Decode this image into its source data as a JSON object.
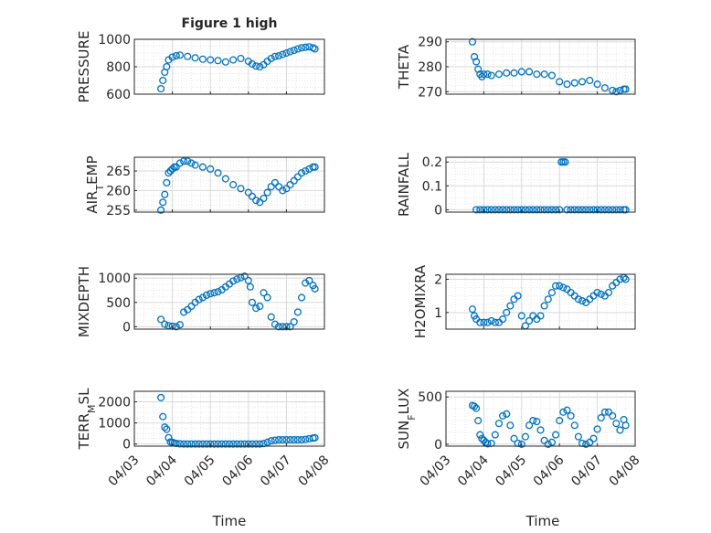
{
  "figure": {
    "title": "Figure 1 high",
    "xlabel": "Time",
    "marker_color": "#0072BD",
    "grid_color": "#d9d9d9",
    "axis_color": "#262626"
  },
  "chart_data": [
    {
      "type": "scatter",
      "ylabel": "PRESSURE",
      "title": "Figure 1 high",
      "ylim": [
        600,
        1000
      ],
      "yticks": [
        "600",
        "800",
        "1000"
      ],
      "ytick_values": [
        600,
        800,
        1000
      ],
      "xlim": [
        0,
        5
      ],
      "xticks": [],
      "grid": true,
      "x": [
        0.7,
        0.75,
        0.8,
        0.85,
        0.9,
        1.0,
        1.1,
        1.2,
        1.4,
        1.6,
        1.8,
        2.0,
        2.2,
        2.4,
        2.6,
        2.8,
        3.0,
        3.1,
        3.2,
        3.3,
        3.4,
        3.5,
        3.6,
        3.7,
        3.8,
        3.9,
        4.0,
        4.1,
        4.2,
        4.3,
        4.4,
        4.5,
        4.6,
        4.7,
        4.75
      ],
      "y": [
        640,
        700,
        760,
        800,
        850,
        870,
        880,
        885,
        875,
        865,
        855,
        850,
        845,
        835,
        850,
        860,
        840,
        820,
        805,
        800,
        815,
        840,
        860,
        875,
        880,
        890,
        900,
        910,
        920,
        930,
        938,
        942,
        945,
        938,
        930
      ]
    },
    {
      "type": "scatter",
      "ylabel": "THETA",
      "ylim": [
        269,
        291
      ],
      "yticks": [
        "270",
        "280",
        "290"
      ],
      "ytick_values": [
        270,
        280,
        290
      ],
      "xlim": [
        0,
        5
      ],
      "xticks": [],
      "grid": true,
      "x": [
        0.7,
        0.75,
        0.8,
        0.85,
        0.9,
        0.95,
        1.0,
        1.1,
        1.2,
        1.4,
        1.6,
        1.8,
        2.0,
        2.2,
        2.4,
        2.6,
        2.8,
        3.0,
        3.2,
        3.4,
        3.6,
        3.8,
        4.0,
        4.2,
        4.4,
        4.5,
        4.6,
        4.7,
        4.75
      ],
      "y": [
        290,
        284,
        282,
        279,
        277,
        276,
        277,
        277,
        276.5,
        277,
        277.5,
        277.5,
        278,
        278,
        277,
        277,
        276.5,
        274,
        273,
        273.5,
        274,
        274.5,
        273,
        271.5,
        270.5,
        270,
        270.5,
        271,
        271
      ]
    },
    {
      "type": "scatter",
      "ylabel": "AIR_TEMP",
      "ylabel_parts": [
        "AIR",
        "T",
        "EMP"
      ],
      "ylim": [
        254.5,
        268.5
      ],
      "yticks": [
        "255",
        "260",
        "265"
      ],
      "ytick_values": [
        255,
        260,
        265
      ],
      "xlim": [
        0,
        5
      ],
      "xticks": [],
      "grid": true,
      "x": [
        0.7,
        0.75,
        0.8,
        0.85,
        0.9,
        0.95,
        1.0,
        1.05,
        1.1,
        1.2,
        1.3,
        1.4,
        1.5,
        1.6,
        1.8,
        2.0,
        2.2,
        2.4,
        2.6,
        2.8,
        3.0,
        3.1,
        3.2,
        3.3,
        3.4,
        3.5,
        3.6,
        3.7,
        3.8,
        3.9,
        4.0,
        4.1,
        4.2,
        4.3,
        4.4,
        4.5,
        4.6,
        4.7,
        4.75
      ],
      "y": [
        255,
        257,
        259,
        262,
        264.5,
        265,
        265.5,
        266,
        266,
        267,
        267.5,
        267.5,
        267,
        266.5,
        266,
        265.5,
        264.5,
        263,
        261.5,
        260.5,
        259.5,
        258.5,
        257.5,
        257,
        258,
        259.5,
        261,
        262,
        261,
        260,
        260.5,
        261.5,
        262.5,
        263.5,
        264.5,
        265,
        265.5,
        266,
        266
      ]
    },
    {
      "type": "scatter",
      "ylabel": "RAINFALL",
      "ylim": [
        -0.01,
        0.22
      ],
      "yticks": [
        "0",
        "0.1",
        "0.2"
      ],
      "ytick_values": [
        0,
        0.1,
        0.2
      ],
      "xlim": [
        0,
        5
      ],
      "xticks": [],
      "grid": true,
      "x": [
        0.8,
        0.9,
        1.0,
        1.1,
        1.2,
        1.3,
        1.4,
        1.5,
        1.6,
        1.7,
        1.8,
        1.9,
        2.0,
        2.1,
        2.2,
        2.3,
        2.4,
        2.5,
        2.6,
        2.7,
        2.8,
        2.9,
        3.0,
        3.05,
        3.1,
        3.15,
        3.2,
        3.3,
        3.4,
        3.5,
        3.6,
        3.7,
        3.8,
        3.9,
        4.0,
        4.1,
        4.2,
        4.3,
        4.4,
        4.5,
        4.6,
        4.7,
        4.75
      ],
      "y": [
        0,
        0,
        0,
        0,
        0,
        0,
        0,
        0,
        0,
        0,
        0,
        0,
        0,
        0,
        0,
        0,
        0,
        0,
        0,
        0,
        0,
        0,
        0,
        0.2,
        0.2,
        0.2,
        0,
        0,
        0,
        0,
        0,
        0,
        0,
        0,
        0,
        0,
        0,
        0,
        0,
        0,
        0,
        0,
        0
      ]
    },
    {
      "type": "scatter",
      "ylabel": "MIXDEPTH",
      "ylim": [
        -50,
        1080
      ],
      "yticks": [
        "0",
        "500",
        "1000"
      ],
      "ytick_values": [
        0,
        500,
        1000
      ],
      "xlim": [
        0,
        5
      ],
      "xticks": [],
      "grid": true,
      "x": [
        0.7,
        0.8,
        0.9,
        1.0,
        1.1,
        1.2,
        1.3,
        1.4,
        1.5,
        1.6,
        1.7,
        1.8,
        1.9,
        2.0,
        2.1,
        2.2,
        2.3,
        2.4,
        2.5,
        2.6,
        2.7,
        2.8,
        2.9,
        3.0,
        3.05,
        3.1,
        3.2,
        3.3,
        3.4,
        3.5,
        3.6,
        3.7,
        3.8,
        3.9,
        4.0,
        4.1,
        4.2,
        4.3,
        4.4,
        4.5,
        4.6,
        4.7,
        4.75
      ],
      "y": [
        150,
        50,
        20,
        10,
        0,
        40,
        300,
        350,
        420,
        500,
        560,
        600,
        650,
        680,
        700,
        720,
        760,
        820,
        880,
        940,
        980,
        1010,
        1040,
        950,
        820,
        500,
        380,
        420,
        700,
        600,
        200,
        50,
        0,
        0,
        0,
        0,
        100,
        300,
        600,
        900,
        950,
        850,
        780
      ]
    },
    {
      "type": "scatter",
      "ylabel": "H2OMIXRA",
      "ylim": [
        0.5,
        2.15
      ],
      "yticks": [
        "1",
        "2"
      ],
      "ytick_values": [
        1,
        2
      ],
      "xlim": [
        0,
        5
      ],
      "xticks": [],
      "grid": true,
      "x": [
        0.7,
        0.75,
        0.8,
        0.9,
        1.0,
        1.1,
        1.2,
        1.3,
        1.4,
        1.5,
        1.6,
        1.7,
        1.8,
        1.9,
        2.0,
        2.1,
        2.2,
        2.3,
        2.4,
        2.5,
        2.6,
        2.7,
        2.8,
        2.9,
        3.0,
        3.1,
        3.2,
        3.3,
        3.4,
        3.5,
        3.6,
        3.7,
        3.8,
        3.9,
        4.0,
        4.1,
        4.2,
        4.3,
        4.4,
        4.5,
        4.6,
        4.7,
        4.75
      ],
      "y": [
        1.1,
        0.9,
        0.8,
        0.7,
        0.7,
        0.7,
        0.75,
        0.7,
        0.7,
        0.8,
        1.0,
        1.2,
        1.4,
        1.5,
        0.9,
        0.6,
        0.75,
        0.9,
        0.8,
        0.9,
        1.2,
        1.4,
        1.6,
        1.8,
        1.8,
        1.75,
        1.7,
        1.6,
        1.5,
        1.4,
        1.35,
        1.3,
        1.4,
        1.5,
        1.6,
        1.55,
        1.5,
        1.6,
        1.8,
        1.9,
        2.0,
        2.05,
        2.0
      ]
    },
    {
      "type": "scatter",
      "ylabel": "TERR_MSL",
      "ylabel_parts": [
        "TERR",
        "M",
        "SL"
      ],
      "ylim": [
        -100,
        2500
      ],
      "yticks": [
        "0",
        "1000",
        "2000"
      ],
      "ytick_values": [
        0,
        1000,
        2000
      ],
      "xlim": [
        0,
        5
      ],
      "xticks": [
        "04/03",
        "04/04",
        "04/05",
        "04/06",
        "04/07",
        "04/08"
      ],
      "grid": true,
      "x": [
        0.7,
        0.75,
        0.8,
        0.85,
        0.9,
        0.95,
        1.0,
        1.05,
        1.1,
        1.2,
        1.3,
        1.4,
        1.5,
        1.6,
        1.7,
        1.8,
        1.9,
        2.0,
        2.1,
        2.2,
        2.3,
        2.4,
        2.5,
        2.6,
        2.7,
        2.8,
        2.9,
        3.0,
        3.1,
        3.2,
        3.3,
        3.4,
        3.5,
        3.6,
        3.7,
        3.8,
        3.9,
        4.0,
        4.1,
        4.2,
        4.3,
        4.4,
        4.5,
        4.6,
        4.7,
        4.75
      ],
      "y": [
        2200,
        1300,
        800,
        700,
        300,
        100,
        80,
        50,
        30,
        10,
        0,
        0,
        0,
        0,
        0,
        0,
        0,
        0,
        0,
        0,
        0,
        0,
        0,
        0,
        0,
        0,
        0,
        0,
        0,
        0,
        0,
        20,
        80,
        150,
        180,
        200,
        200,
        200,
        200,
        200,
        200,
        200,
        220,
        250,
        280,
        300
      ]
    },
    {
      "type": "scatter",
      "ylabel": "SUN_FLUX",
      "ylabel_parts": [
        "SUN",
        "F",
        "LUX"
      ],
      "ylim": [
        -20,
        560
      ],
      "yticks": [
        "0",
        "500"
      ],
      "ytick_values": [
        0,
        500
      ],
      "xlim": [
        0,
        5
      ],
      "xticks": [
        "04/03",
        "04/04",
        "04/05",
        "04/06",
        "04/07",
        "04/08"
      ],
      "grid": true,
      "x": [
        0.7,
        0.75,
        0.8,
        0.85,
        0.9,
        0.95,
        1.0,
        1.05,
        1.1,
        1.2,
        1.3,
        1.4,
        1.5,
        1.6,
        1.7,
        1.8,
        1.9,
        2.0,
        2.1,
        2.2,
        2.3,
        2.4,
        2.5,
        2.6,
        2.7,
        2.8,
        2.9,
        3.0,
        3.1,
        3.2,
        3.3,
        3.4,
        3.5,
        3.6,
        3.7,
        3.8,
        3.9,
        4.0,
        4.1,
        4.2,
        4.3,
        4.4,
        4.5,
        4.6,
        4.7,
        4.75
      ],
      "y": [
        410,
        400,
        380,
        250,
        100,
        60,
        40,
        20,
        5,
        10,
        100,
        220,
        300,
        320,
        200,
        60,
        10,
        0,
        80,
        200,
        250,
        240,
        150,
        40,
        0,
        20,
        100,
        250,
        340,
        360,
        300,
        200,
        80,
        10,
        0,
        20,
        60,
        160,
        280,
        340,
        340,
        300,
        220,
        150,
        260,
        200
      ]
    }
  ]
}
